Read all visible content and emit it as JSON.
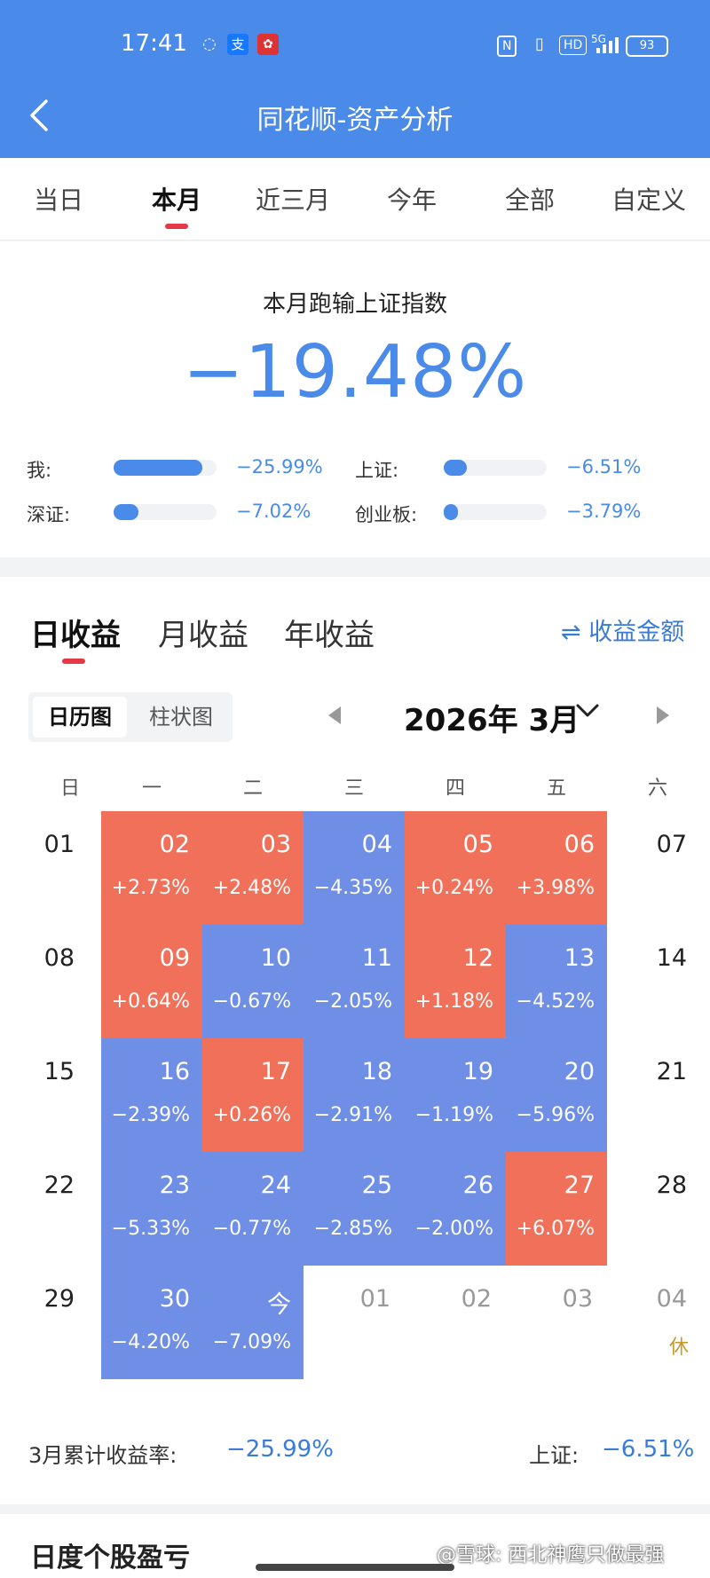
{
  "status_bar": {
    "time": "17:41",
    "battery": "93",
    "network": "5G",
    "hd": "HD",
    "nfc": "N"
  },
  "header": {
    "title": "同花顺-资产分析"
  },
  "period_tabs": [
    {
      "label": "当日",
      "active": false
    },
    {
      "label": "本月",
      "active": true
    },
    {
      "label": "近三月",
      "active": false
    },
    {
      "label": "今年",
      "active": false
    },
    {
      "label": "全部",
      "active": false
    },
    {
      "label": "自定义",
      "active": false
    }
  ],
  "summary": {
    "title": "本月跑输上证指数",
    "value": "−19.48%",
    "rows": [
      {
        "label": "我:",
        "value": "−25.99%",
        "fraction": 0.86
      },
      {
        "label": "上证:",
        "value": "−6.51%",
        "fraction": 0.22
      },
      {
        "label": "深证:",
        "value": "−7.02%",
        "fraction": 0.24
      },
      {
        "label": "创业板:",
        "value": "−3.79%",
        "fraction": 0.13
      }
    ]
  },
  "returns": {
    "tabs": [
      {
        "label": "日收益",
        "active": true
      },
      {
        "label": "月收益",
        "active": false
      },
      {
        "label": "年收益",
        "active": false
      }
    ],
    "amount_toggle": "⇌ 收益金额",
    "view_switch": {
      "calendar": "日历图",
      "bar": "柱状图"
    },
    "month_label": "2026年 3月",
    "weekdays": [
      "日",
      "一",
      "二",
      "三",
      "四",
      "五",
      "六"
    ],
    "weeks": [
      [
        {
          "d": "01",
          "t": "plain"
        },
        {
          "d": "02",
          "p": "+2.73%",
          "t": "up"
        },
        {
          "d": "03",
          "p": "+2.48%",
          "t": "up"
        },
        {
          "d": "04",
          "p": "−4.35%",
          "t": "down"
        },
        {
          "d": "05",
          "p": "+0.24%",
          "t": "up"
        },
        {
          "d": "06",
          "p": "+3.98%",
          "t": "up"
        },
        {
          "d": "07",
          "t": "plain"
        }
      ],
      [
        {
          "d": "08",
          "t": "plain"
        },
        {
          "d": "09",
          "p": "+0.64%",
          "t": "up"
        },
        {
          "d": "10",
          "p": "−0.67%",
          "t": "down"
        },
        {
          "d": "11",
          "p": "−2.05%",
          "t": "down"
        },
        {
          "d": "12",
          "p": "+1.18%",
          "t": "up"
        },
        {
          "d": "13",
          "p": "−4.52%",
          "t": "down"
        },
        {
          "d": "14",
          "t": "plain"
        }
      ],
      [
        {
          "d": "15",
          "t": "plain"
        },
        {
          "d": "16",
          "p": "−2.39%",
          "t": "down"
        },
        {
          "d": "17",
          "p": "+0.26%",
          "t": "up"
        },
        {
          "d": "18",
          "p": "−2.91%",
          "t": "down"
        },
        {
          "d": "19",
          "p": "−1.19%",
          "t": "down"
        },
        {
          "d": "20",
          "p": "−5.96%",
          "t": "down"
        },
        {
          "d": "21",
          "t": "plain"
        }
      ],
      [
        {
          "d": "22",
          "t": "plain"
        },
        {
          "d": "23",
          "p": "−5.33%",
          "t": "down"
        },
        {
          "d": "24",
          "p": "−0.77%",
          "t": "down"
        },
        {
          "d": "25",
          "p": "−2.85%",
          "t": "down"
        },
        {
          "d": "26",
          "p": "−2.00%",
          "t": "down"
        },
        {
          "d": "27",
          "p": "+6.07%",
          "t": "up"
        },
        {
          "d": "28",
          "t": "plain"
        }
      ],
      [
        {
          "d": "29",
          "t": "plain"
        },
        {
          "d": "30",
          "p": "−4.20%",
          "t": "down"
        },
        {
          "d": "今",
          "p": "−7.09%",
          "t": "down"
        },
        {
          "d": "01",
          "t": "future"
        },
        {
          "d": "02",
          "t": "future"
        },
        {
          "d": "03",
          "t": "future"
        },
        {
          "d": "04",
          "t": "future",
          "note": "休"
        }
      ]
    ],
    "month_total_label": "3月累计收益率:",
    "month_total_value": "−25.99%",
    "sh_total_label": "上证:",
    "sh_total_value": "−6.51%"
  },
  "bottom": {
    "title": "日度个股盈亏",
    "watermark": "@雪球: 西北神鹰只做最强"
  },
  "colors": {
    "accent": "#4a8ae8",
    "up": "#f1705a",
    "down": "#6f8ee6",
    "indicator": "#e63946"
  }
}
